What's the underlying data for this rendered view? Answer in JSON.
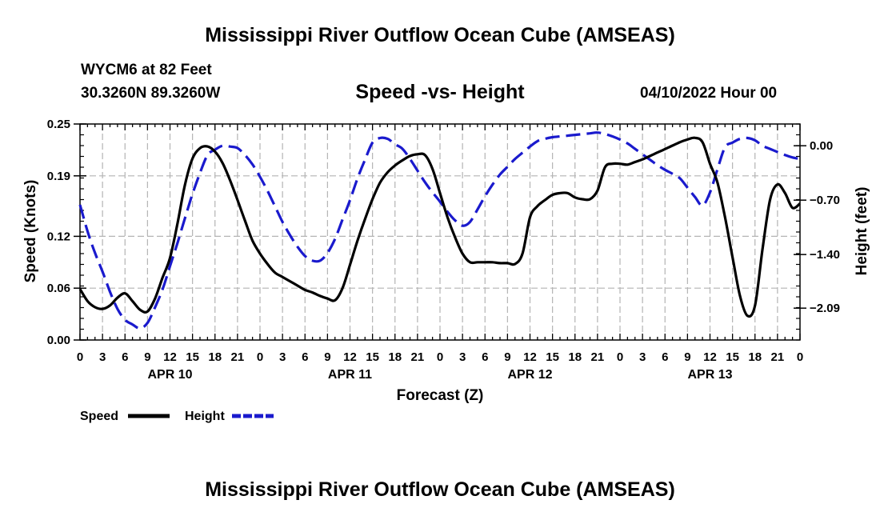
{
  "title": "Mississippi River Outflow Ocean Cube (AMSEAS)",
  "title_bottom": "Mississippi River Outflow Ocean Cube (AMSEAS)",
  "station": "WYCM6 at 82 Feet",
  "latlon": "30.3260N  89.3260W",
  "subtitle": "Speed -vs- Height",
  "datetime": "04/10/2022 Hour 00",
  "colors": {
    "speed": "#000000",
    "height": "#1a1acd",
    "grid": "#b4b4b4"
  },
  "chart_data": {
    "type": "line",
    "title": "Speed -vs- Height",
    "xlabel": "Forecast (Z)",
    "ylabel": "Speed (Knots)",
    "y2label": "Height (feet)",
    "xlim": [
      0,
      96
    ],
    "ylim": [
      0,
      0.25
    ],
    "y2lim": [
      -2.5,
      0.28
    ],
    "x_ticks": [
      0,
      3,
      6,
      9,
      12,
      15,
      18,
      21,
      24,
      27,
      30,
      33,
      36,
      39,
      42,
      45,
      48,
      51,
      54,
      57,
      60,
      63,
      66,
      69,
      72,
      75,
      78,
      81,
      84,
      87,
      90,
      93,
      96
    ],
    "x_tick_labels": [
      "0",
      "3",
      "6",
      "9",
      "12",
      "15",
      "18",
      "21",
      "0",
      "3",
      "6",
      "9",
      "12",
      "15",
      "18",
      "21",
      "0",
      "3",
      "6",
      "9",
      "12",
      "15",
      "18",
      "21",
      "0",
      "3",
      "6",
      "9",
      "12",
      "15",
      "18",
      "21",
      "0"
    ],
    "date_labels": [
      {
        "x": 12,
        "label": "APR 10"
      },
      {
        "x": 36,
        "label": "APR 11"
      },
      {
        "x": 60,
        "label": "APR 12"
      },
      {
        "x": 84,
        "label": "APR 13"
      }
    ],
    "y_ticks": [
      0.0,
      0.06,
      0.12,
      0.19,
      0.25
    ],
    "y_tick_labels": [
      "0.00",
      "0.06",
      "0.12",
      "0.19",
      "0.25"
    ],
    "y2_ticks": [
      0.0,
      -0.7,
      -1.4,
      -2.09
    ],
    "y2_tick_labels": [
      "0.00",
      "−0.70",
      "−1.40",
      "−2.09"
    ],
    "grid": true,
    "series": [
      {
        "name": "Speed",
        "axis": "left",
        "style": "solid",
        "x": [
          0,
          1,
          2,
          3,
          4,
          5,
          6,
          7,
          8,
          9,
          10,
          11,
          12,
          13,
          14,
          15,
          16,
          17,
          18,
          19,
          20,
          21,
          22,
          23,
          24,
          25,
          26,
          27,
          28,
          29,
          30,
          31,
          32,
          33,
          34,
          35,
          36,
          37,
          38,
          39,
          40,
          41,
          42,
          43,
          44,
          45,
          46,
          47,
          48,
          49,
          50,
          51,
          52,
          53,
          54,
          55,
          56,
          57,
          58,
          59,
          60,
          61,
          62,
          63,
          64,
          65,
          66,
          67,
          68,
          69,
          70,
          71,
          72,
          73,
          74,
          75,
          76,
          77,
          78,
          79,
          80,
          81,
          82,
          83,
          84,
          85,
          86,
          87,
          88,
          89,
          90,
          91,
          92,
          93,
          94,
          95,
          96
        ],
        "values": [
          0.059,
          0.045,
          0.038,
          0.036,
          0.04,
          0.049,
          0.054,
          0.045,
          0.035,
          0.033,
          0.048,
          0.072,
          0.095,
          0.135,
          0.18,
          0.21,
          0.222,
          0.224,
          0.218,
          0.205,
          0.185,
          0.162,
          0.138,
          0.115,
          0.1,
          0.088,
          0.078,
          0.073,
          0.068,
          0.063,
          0.058,
          0.055,
          0.051,
          0.048,
          0.046,
          0.06,
          0.087,
          0.115,
          0.14,
          0.163,
          0.182,
          0.194,
          0.202,
          0.208,
          0.213,
          0.215,
          0.214,
          0.198,
          0.17,
          0.142,
          0.119,
          0.1,
          0.09,
          0.09,
          0.09,
          0.09,
          0.089,
          0.089,
          0.088,
          0.1,
          0.142,
          0.155,
          0.162,
          0.168,
          0.17,
          0.17,
          0.165,
          0.163,
          0.163,
          0.173,
          0.2,
          0.204,
          0.204,
          0.203,
          0.206,
          0.209,
          0.213,
          0.217,
          0.221,
          0.225,
          0.229,
          0.232,
          0.234,
          0.229,
          0.204,
          0.182,
          0.142,
          0.096,
          0.051,
          0.028,
          0.04,
          0.105,
          0.162,
          0.18,
          0.17,
          0.153,
          0.158
        ]
      },
      {
        "name": "Height",
        "axis": "right",
        "style": "dashed",
        "x": [
          0,
          1,
          2,
          3,
          4,
          5,
          6,
          7,
          8,
          9,
          10,
          11,
          12,
          13,
          14,
          15,
          16,
          17,
          18,
          19,
          20,
          21,
          22,
          23,
          24,
          25,
          26,
          27,
          28,
          29,
          30,
          31,
          32,
          33,
          34,
          35,
          36,
          37,
          38,
          39,
          40,
          41,
          42,
          43,
          44,
          45,
          46,
          47,
          48,
          49,
          50,
          51,
          52,
          53,
          54,
          55,
          56,
          57,
          58,
          59,
          60,
          61,
          62,
          63,
          64,
          65,
          66,
          67,
          68,
          69,
          70,
          71,
          72,
          73,
          74,
          75,
          76,
          77,
          78,
          79,
          80,
          81,
          82,
          83,
          84,
          85,
          86,
          87,
          88,
          89,
          90,
          91,
          92,
          93,
          94,
          95,
          96
        ],
        "values": [
          -0.76,
          -1.1,
          -1.38,
          -1.62,
          -1.88,
          -2.1,
          -2.24,
          -2.3,
          -2.35,
          -2.28,
          -2.08,
          -1.85,
          -1.55,
          -1.25,
          -0.93,
          -0.62,
          -0.35,
          -0.12,
          -0.05,
          0.0,
          -0.01,
          -0.03,
          -0.12,
          -0.24,
          -0.4,
          -0.58,
          -0.78,
          -0.98,
          -1.15,
          -1.3,
          -1.42,
          -1.48,
          -1.48,
          -1.38,
          -1.2,
          -0.95,
          -0.7,
          -0.42,
          -0.18,
          0.04,
          0.1,
          0.09,
          0.02,
          -0.04,
          -0.17,
          -0.32,
          -0.47,
          -0.6,
          -0.72,
          -0.85,
          -0.96,
          -1.03,
          -0.98,
          -0.82,
          -0.65,
          -0.5,
          -0.37,
          -0.27,
          -0.17,
          -0.09,
          -0.01,
          0.06,
          0.09,
          0.11,
          0.12,
          0.13,
          0.14,
          0.15,
          0.16,
          0.17,
          0.15,
          0.12,
          0.08,
          0.03,
          -0.04,
          -0.11,
          -0.18,
          -0.25,
          -0.31,
          -0.36,
          -0.42,
          -0.54,
          -0.66,
          -0.77,
          -0.6,
          -0.3,
          -0.02,
          0.04,
          0.09,
          0.1,
          0.07,
          0.0,
          -0.04,
          -0.08,
          -0.12,
          -0.15,
          -0.17
        ]
      }
    ],
    "legend": [
      {
        "label": "Speed",
        "series": "Speed"
      },
      {
        "label": "Height",
        "series": "Height"
      }
    ],
    "legend_position": "bottom-left"
  }
}
